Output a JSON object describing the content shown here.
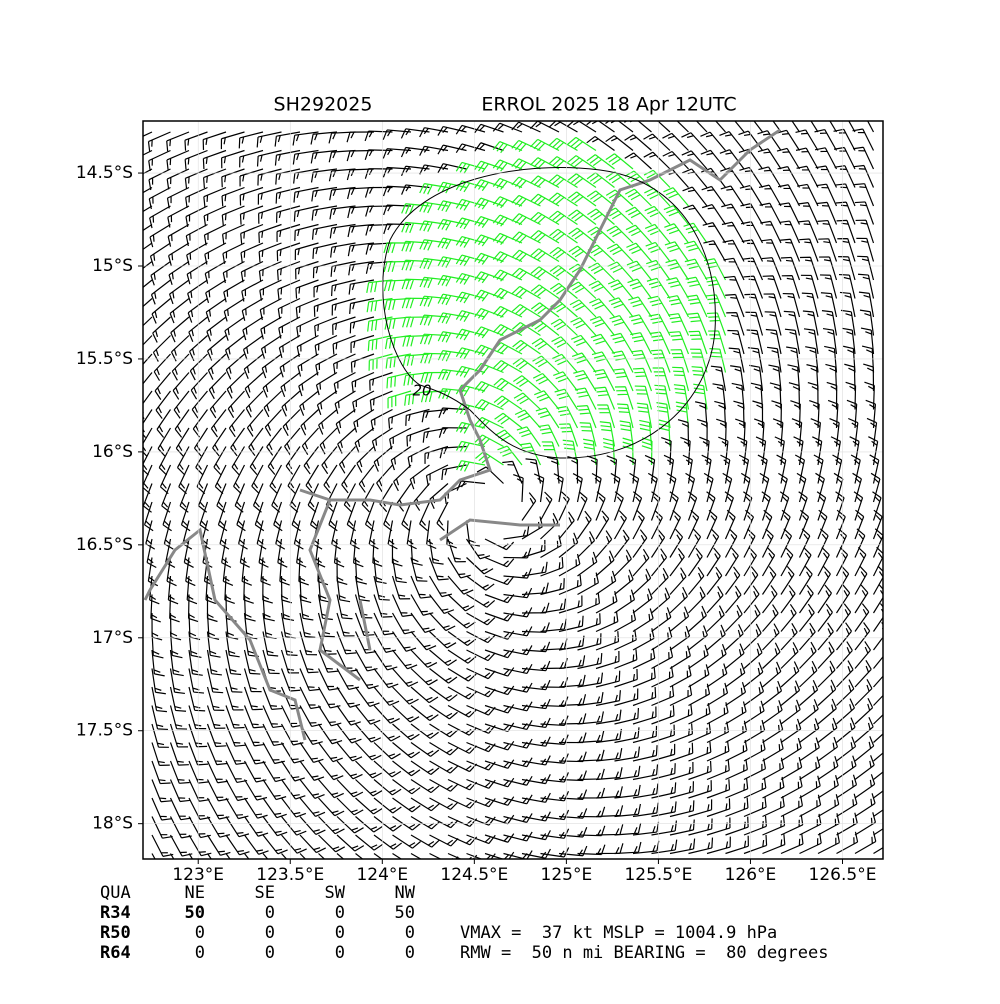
{
  "title_left": "SH292025",
  "title_right": "ERROL 2025 18 Apr 12UTC",
  "map": {
    "xlim": [
      122.7,
      126.72
    ],
    "ylim": [
      -18.19,
      -14.22
    ],
    "xticks": [
      {
        "value": 123,
        "label": "123°E"
      },
      {
        "value": 123.5,
        "label": "123.5°E"
      },
      {
        "value": 124,
        "label": "124°E"
      },
      {
        "value": 124.5,
        "label": "124.5°E"
      },
      {
        "value": 125,
        "label": "125°E"
      },
      {
        "value": 125.5,
        "label": "125.5°E"
      },
      {
        "value": 126,
        "label": "126°E"
      },
      {
        "value": 126.5,
        "label": "126.5°E"
      }
    ],
    "yticks": [
      {
        "value": -14.5,
        "label": "14.5°S"
      },
      {
        "value": -15,
        "label": "15°S"
      },
      {
        "value": -15.5,
        "label": "15.5°S"
      },
      {
        "value": -16,
        "label": "16°S"
      },
      {
        "value": -16.5,
        "label": "16.5°S"
      },
      {
        "value": -17,
        "label": "17°S"
      },
      {
        "value": -17.5,
        "label": "17.5°S"
      },
      {
        "value": -18,
        "label": "18°S"
      }
    ],
    "contour_label": "20"
  },
  "table": {
    "header": [
      "QUA",
      "NE",
      "SE",
      "SW",
      "NW"
    ],
    "rows": [
      [
        "R34",
        "50",
        "0",
        "0",
        "50"
      ],
      [
        "R50",
        "0",
        "0",
        "0",
        "0"
      ],
      [
        "R64",
        "0",
        "0",
        "0",
        "0"
      ]
    ]
  },
  "stats": [
    "VMAX =  37 kt MSLP = 1004.9 hPa",
    "RMW =  50 n mi BEARING =  80 degrees"
  ]
}
